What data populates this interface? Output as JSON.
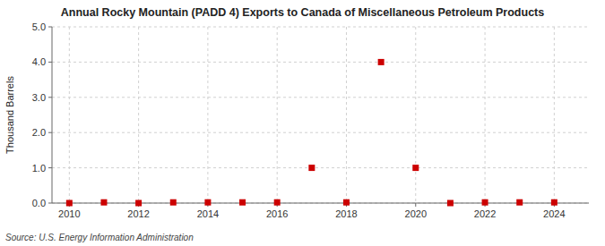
{
  "chart_data": {
    "type": "scatter",
    "title": "Annual Rocky Mountain (PADD 4) Exports to Canada of Miscellaneous Petroleum Products",
    "ylabel": "Thousand Barrels",
    "source": "Source: U.S. Energy Information Administration",
    "x": [
      2010,
      2011,
      2012,
      2013,
      2014,
      2015,
      2016,
      2017,
      2018,
      2019,
      2020,
      2021,
      2022,
      2023,
      2024
    ],
    "values": [
      0.0,
      0.02,
      0.0,
      0.02,
      0.02,
      0.02,
      0.02,
      1.0,
      0.02,
      4.0,
      1.0,
      0.0,
      0.02,
      0.02,
      0.02
    ],
    "xlim": [
      2009.5,
      2025.0
    ],
    "ylim": [
      0.0,
      5.0
    ],
    "xticks": [
      2010,
      2012,
      2014,
      2016,
      2018,
      2020,
      2022,
      2024
    ],
    "yticks": [
      {
        "value": 0.0,
        "label": "0.0"
      },
      {
        "value": 1.0,
        "label": "1.0"
      },
      {
        "value": 2.0,
        "label": "2.0"
      },
      {
        "value": 3.0,
        "label": "3.0"
      },
      {
        "value": 4.0,
        "label": "4.0"
      },
      {
        "value": 5.0,
        "label": "5.0"
      }
    ],
    "color": "#cc0000",
    "marker": "square",
    "grid": true
  }
}
